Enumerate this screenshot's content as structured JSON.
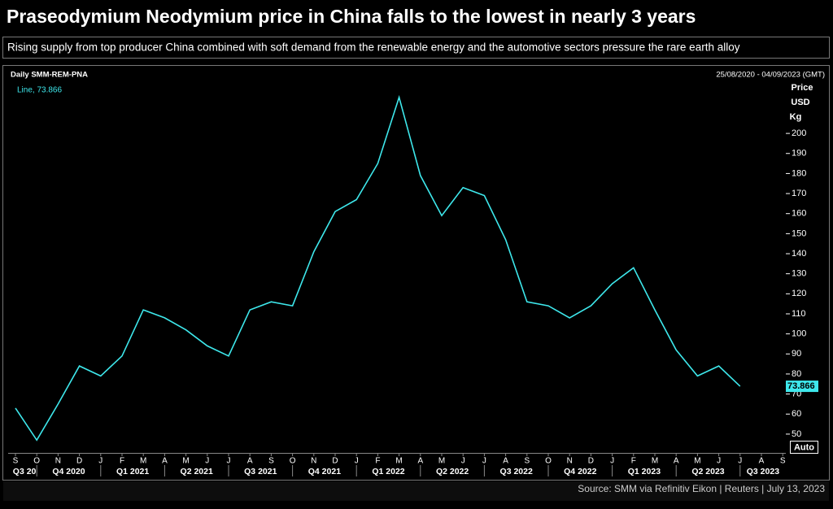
{
  "title": "Praseodymium Neodymium price in China falls to the lowest in nearly 3 years",
  "subtitle": "Rising supply from top producer China combined with soft demand from the renewable energy and the automotive sectors pressure the rare earth alloy",
  "chart_data": {
    "type": "line",
    "instrument": "Daily SMM-REM-PNA",
    "date_range": "25/08/2020 - 04/09/2023 (GMT)",
    "legend": "Line, 73.866",
    "y_axis_labels": [
      "Price",
      "USD",
      "Kg"
    ],
    "button": "Auto",
    "x": [
      "2020-09",
      "2020-10",
      "2020-11",
      "2020-12",
      "2021-01",
      "2021-02",
      "2021-03",
      "2021-04",
      "2021-05",
      "2021-06",
      "2021-07",
      "2021-08",
      "2021-09",
      "2021-10",
      "2021-11",
      "2021-12",
      "2022-01",
      "2022-02",
      "2022-03",
      "2022-04",
      "2022-05",
      "2022-06",
      "2022-07",
      "2022-08",
      "2022-09",
      "2022-10",
      "2022-11",
      "2022-12",
      "2023-01",
      "2023-02",
      "2023-03",
      "2023-04",
      "2023-05",
      "2023-06",
      "2023-07"
    ],
    "series": [
      {
        "color": "#3ee8ec",
        "values": [
          63,
          47,
          65,
          84,
          79,
          89,
          112,
          108,
          102,
          94,
          89,
          112,
          116,
          114,
          141,
          161,
          167,
          185,
          218,
          179,
          159,
          173,
          169,
          147,
          116,
          114,
          108,
          114,
          125,
          133,
          112,
          92,
          79,
          84,
          73.866
        ]
      }
    ],
    "ylim": [
      45.5,
      226
    ],
    "yticks": [
      50,
      60,
      70,
      80,
      90,
      100,
      110,
      120,
      130,
      140,
      150,
      160,
      170,
      180,
      190,
      200
    ],
    "xticks": [
      {
        "value": "2020-09",
        "label": "S"
      },
      {
        "value": "2020-10",
        "label": "O"
      },
      {
        "value": "2020-11",
        "label": "N"
      },
      {
        "value": "2020-12",
        "label": "D"
      },
      {
        "value": "2021-01",
        "label": "J"
      },
      {
        "value": "2021-02",
        "label": "F"
      },
      {
        "value": "2021-03",
        "label": "M"
      },
      {
        "value": "2021-04",
        "label": "A"
      },
      {
        "value": "2021-05",
        "label": "M"
      },
      {
        "value": "2021-06",
        "label": "J"
      },
      {
        "value": "2021-07",
        "label": "J"
      },
      {
        "value": "2021-08",
        "label": "A"
      },
      {
        "value": "2021-09",
        "label": "S"
      },
      {
        "value": "2021-10",
        "label": "O"
      },
      {
        "value": "2021-11",
        "label": "N"
      },
      {
        "value": "2021-12",
        "label": "D"
      },
      {
        "value": "2022-01",
        "label": "J"
      },
      {
        "value": "2022-02",
        "label": "F"
      },
      {
        "value": "2022-03",
        "label": "M"
      },
      {
        "value": "2022-04",
        "label": "A"
      },
      {
        "value": "2022-05",
        "label": "M"
      },
      {
        "value": "2022-06",
        "label": "J"
      },
      {
        "value": "2022-07",
        "label": "J"
      },
      {
        "value": "2022-08",
        "label": "A"
      },
      {
        "value": "2022-09",
        "label": "S"
      },
      {
        "value": "2022-10",
        "label": "O"
      },
      {
        "value": "2022-11",
        "label": "N"
      },
      {
        "value": "2022-12",
        "label": "D"
      },
      {
        "value": "2023-01",
        "label": "J"
      },
      {
        "value": "2023-02",
        "label": "F"
      },
      {
        "value": "2023-03",
        "label": "M"
      },
      {
        "value": "2023-04",
        "label": "A"
      },
      {
        "value": "2023-05",
        "label": "M"
      },
      {
        "value": "2023-06",
        "label": "J"
      },
      {
        "value": "2023-07",
        "label": "J"
      },
      {
        "value": "2023-08",
        "label": "A"
      },
      {
        "value": "2023-09",
        "label": "S"
      }
    ],
    "quarters": [
      "Q3 20",
      "Q4 2020",
      "Q1 2021",
      "Q2 2021",
      "Q3 2021",
      "Q4 2021",
      "Q1 2022",
      "Q2 2022",
      "Q3 2022",
      "Q4 2022",
      "Q1 2023",
      "Q2 2023",
      "Q3 2023"
    ]
  },
  "source": "Source: SMM via Refinitiv Eikon | Reuters | July 13, 2023"
}
